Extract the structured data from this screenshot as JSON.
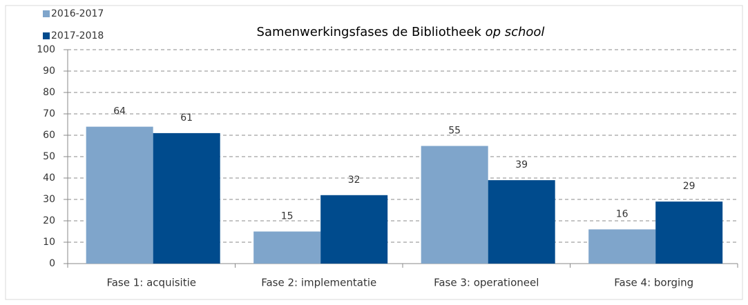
{
  "chart_data": {
    "type": "bar",
    "title": [
      "Samenwerkingsfases de Bibliotheek",
      "op school"
    ],
    "categories": [
      "Fase 1: acquisitie",
      "Fase 2: implementatie",
      "Fase 3: operationeel",
      "Fase 4: borging"
    ],
    "series": [
      {
        "name": "2016-2017",
        "color": "#7fa5cb",
        "values": [
          64,
          15,
          55,
          16
        ]
      },
      {
        "name": "2017-2018",
        "color": "#004b8d",
        "values": [
          61,
          32,
          39,
          29
        ]
      }
    ],
    "ylim": [
      0,
      100
    ],
    "yticks": [
      0,
      10,
      20,
      30,
      40,
      50,
      60,
      70,
      80,
      90,
      100
    ],
    "grid": true,
    "legend": "top-left"
  }
}
